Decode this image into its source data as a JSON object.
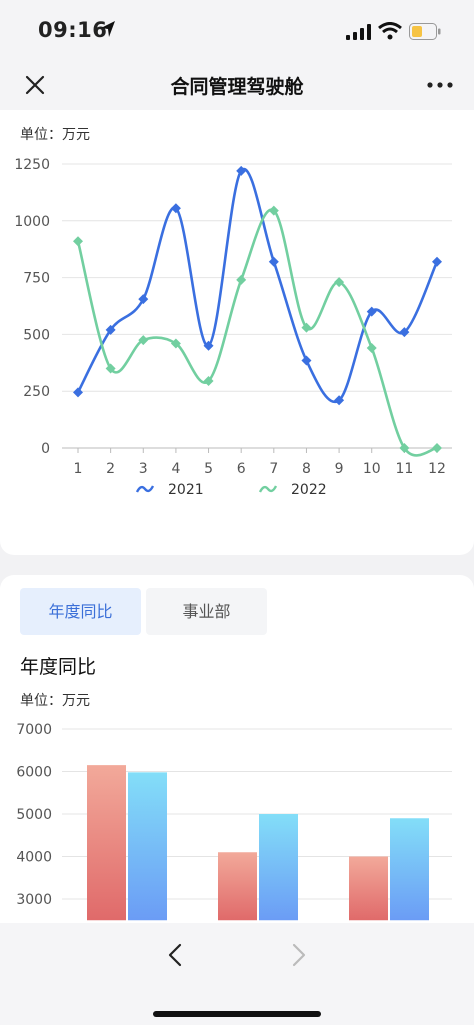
{
  "status": {
    "time": "09:16"
  },
  "nav": {
    "title": "合同管理驾驶舱",
    "close_icon": "close-icon",
    "more_icon": "more-dots-icon"
  },
  "line_unit": "单位：万元",
  "bar_section": {
    "tabs": [
      {
        "label": "年度同比",
        "active": true
      },
      {
        "label": "事业部",
        "active": false
      }
    ],
    "title": "年度同比",
    "unit": "单位：万元"
  },
  "bottom": {
    "back_icon": "chevron-left-icon",
    "forward_icon": "chevron-right-icon"
  },
  "chart_data": [
    {
      "type": "line",
      "smooth": true,
      "x": [
        "1",
        "2",
        "3",
        "4",
        "5",
        "6",
        "7",
        "8",
        "9",
        "10",
        "11",
        "12"
      ],
      "ylim": [
        0,
        1250
      ],
      "yticks": [
        0,
        250,
        500,
        750,
        1000,
        1250
      ],
      "grid": true,
      "legend_position": "bottom-center",
      "series": [
        {
          "name": "2021",
          "color": "#3a6fe0",
          "marker": "diamond",
          "values": [
            245,
            520,
            655,
            1055,
            450,
            1220,
            820,
            385,
            210,
            600,
            510,
            820
          ]
        },
        {
          "name": "2022",
          "color": "#72cfa0",
          "marker": "diamond",
          "values": [
            910,
            350,
            475,
            460,
            295,
            740,
            1045,
            530,
            730,
            440,
            0,
            0
          ]
        }
      ]
    },
    {
      "type": "bar",
      "categories": [
        "",
        "",
        ""
      ],
      "ylim": [
        2500,
        7000
      ],
      "yticks": [
        3000,
        4000,
        5000,
        6000,
        7000
      ],
      "grid": true,
      "series": [
        {
          "color_top": "#f2a99a",
          "color_bottom": "#e06a6a",
          "values": [
            6150,
            4100,
            4000
          ]
        },
        {
          "color_top": "#83def8",
          "color_bottom": "#6b9cf5",
          "values": [
            5980,
            5000,
            4900
          ]
        }
      ]
    }
  ]
}
